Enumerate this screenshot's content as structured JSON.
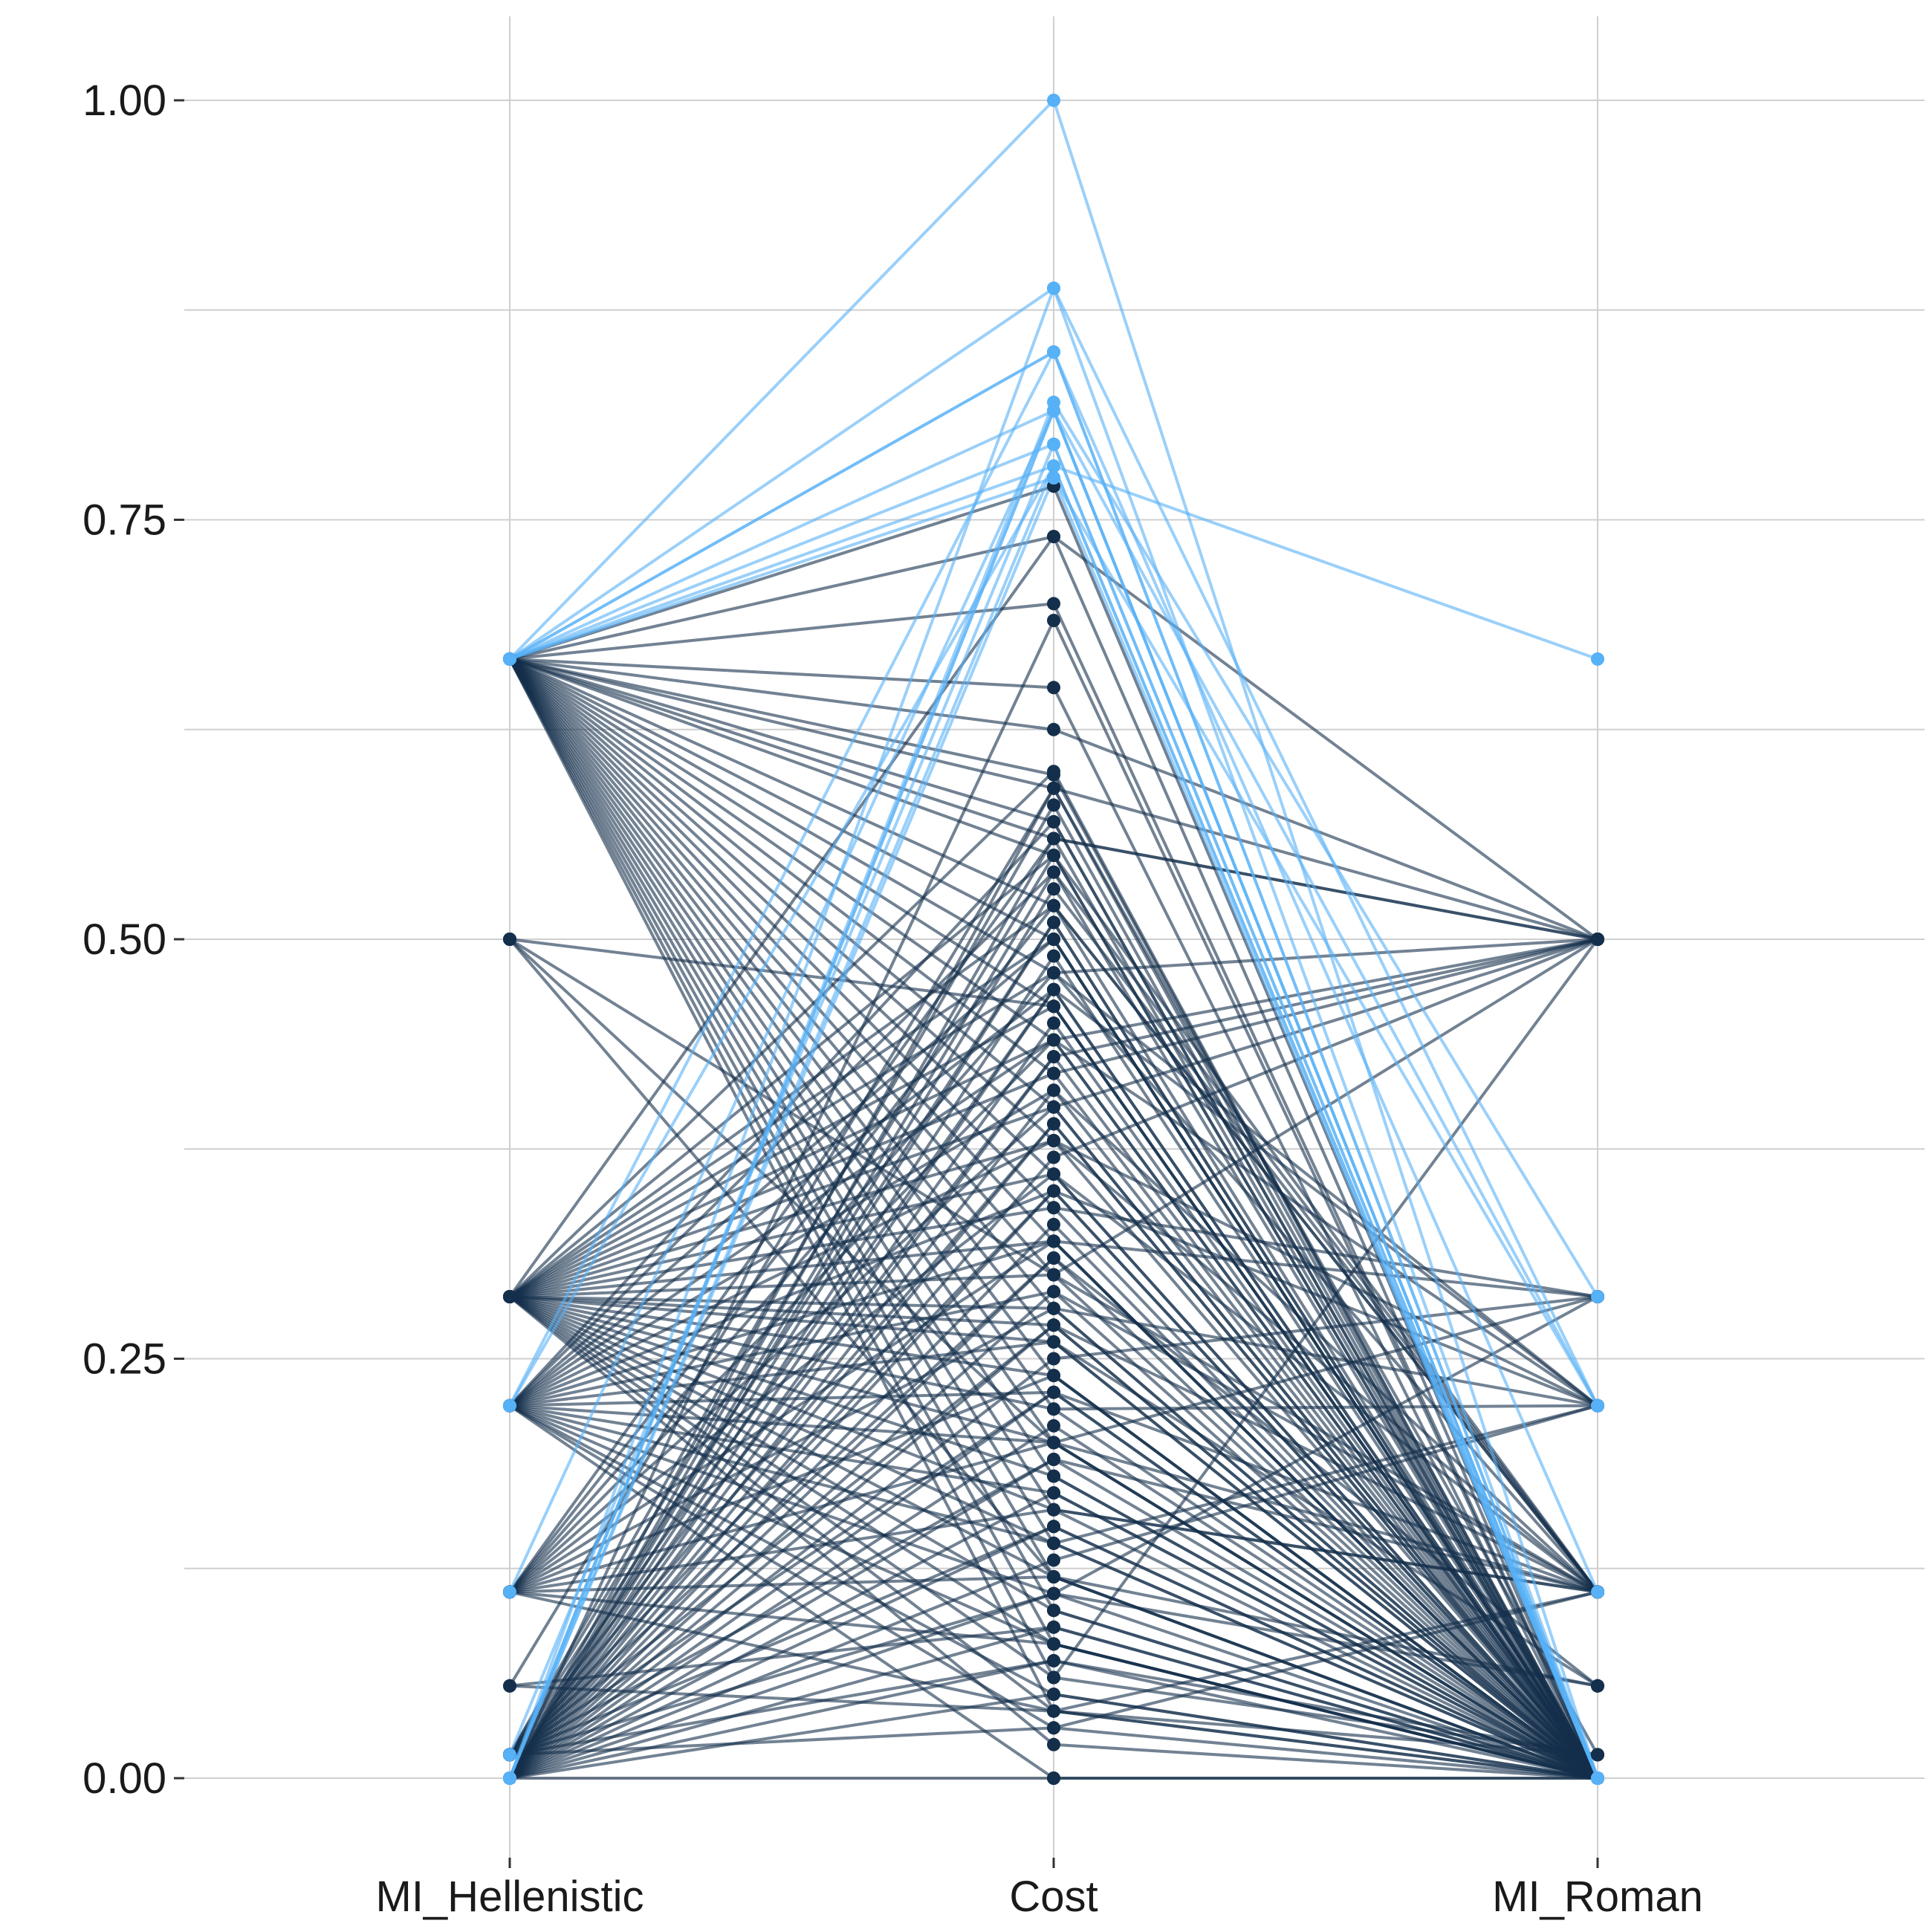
{
  "chart_data": {
    "type": "line",
    "subtype": "parallel-coordinates",
    "title": "",
    "xlabel": "",
    "ylabel": "",
    "ylim": [
      -0.05,
      1.05
    ],
    "y_ticks": [
      "0.00",
      "0.25",
      "0.50",
      "0.75",
      "1.00"
    ],
    "y_tick_values": [
      0,
      0.25,
      0.5,
      0.75,
      1.0
    ],
    "x_categories": [
      "MI_Hellenistic",
      "Cost",
      "MI_Roman"
    ],
    "grid": true,
    "legend": "none",
    "colors": {
      "dark": "#142f4b",
      "light": "#56b1f7",
      "grid": "#cfcfcf",
      "tick": "#333333"
    },
    "groups": [
      {
        "color": "#56b1f7",
        "lines": [
          [
            0.667,
            1.0,
            0.0
          ],
          [
            0.667,
            0.888,
            0.222
          ],
          [
            0.667,
            0.85,
            0.0
          ],
          [
            0.667,
            0.85,
            0.111
          ],
          [
            0.667,
            0.815,
            0.0
          ],
          [
            0.667,
            0.795,
            0.0
          ],
          [
            0.667,
            0.782,
            0.667
          ],
          [
            0.667,
            0.775,
            0.0
          ],
          [
            0.0,
            0.82,
            0.287
          ],
          [
            0.0,
            0.815,
            0.222
          ],
          [
            0.0,
            0.782,
            0.0
          ],
          [
            0.222,
            0.85,
            0.0
          ],
          [
            0.222,
            0.782,
            0.0
          ],
          [
            0.111,
            0.815,
            0.0
          ],
          [
            0.0,
            0.888,
            0.0
          ],
          [
            0.0,
            0.815,
            0.0
          ],
          [
            0.014,
            0.795,
            0.0
          ],
          [
            0.0,
            0.775,
            0.222
          ]
        ]
      },
      {
        "color": "#142f4b",
        "lines": [
          [
            0.667,
            0.77,
            0.0
          ],
          [
            0.667,
            0.74,
            0.0
          ],
          [
            0.667,
            0.7,
            0.0
          ],
          [
            0.667,
            0.65,
            0.0
          ],
          [
            0.667,
            0.625,
            0.5
          ],
          [
            0.667,
            0.598,
            0.0
          ],
          [
            0.667,
            0.59,
            0.014
          ],
          [
            0.667,
            0.57,
            0.0
          ],
          [
            0.667,
            0.56,
            0.5
          ],
          [
            0.667,
            0.55,
            0.0
          ],
          [
            0.667,
            0.52,
            0.111
          ],
          [
            0.667,
            0.5,
            0.0
          ],
          [
            0.667,
            0.48,
            0.222
          ],
          [
            0.667,
            0.46,
            0.0
          ],
          [
            0.667,
            0.44,
            0.0
          ],
          [
            0.667,
            0.42,
            0.5
          ],
          [
            0.667,
            0.4,
            0.0
          ],
          [
            0.667,
            0.38,
            0.0
          ],
          [
            0.667,
            0.36,
            0.111
          ],
          [
            0.667,
            0.34,
            0.0
          ],
          [
            0.667,
            0.32,
            0.287
          ],
          [
            0.667,
            0.3,
            0.0
          ],
          [
            0.667,
            0.28,
            0.0
          ],
          [
            0.667,
            0.26,
            0.055
          ],
          [
            0.667,
            0.24,
            0.0
          ],
          [
            0.667,
            0.22,
            0.0
          ],
          [
            0.667,
            0.2,
            0.111
          ],
          [
            0.667,
            0.18,
            0.0
          ],
          [
            0.667,
            0.16,
            0.0
          ],
          [
            0.667,
            0.14,
            0.222
          ],
          [
            0.667,
            0.12,
            0.0
          ],
          [
            0.667,
            0.1,
            0.0
          ],
          [
            0.667,
            0.08,
            0.0
          ],
          [
            0.667,
            0.06,
            0.014
          ],
          [
            0.667,
            0.04,
            0.0
          ],
          [
            0.5,
            0.46,
            0.0
          ],
          [
            0.5,
            0.3,
            0.111
          ],
          [
            0.5,
            0.2,
            0.0
          ],
          [
            0.5,
            0.12,
            0.0
          ],
          [
            0.055,
            0.09,
            0.0
          ],
          [
            0.055,
            0.59,
            0.5
          ],
          [
            0.055,
            0.04,
            0.111
          ],
          [
            0.287,
            0.74,
            0.5
          ],
          [
            0.287,
            0.6,
            0.0
          ],
          [
            0.287,
            0.55,
            0.0
          ],
          [
            0.287,
            0.52,
            0.111
          ],
          [
            0.287,
            0.5,
            0.0
          ],
          [
            0.287,
            0.48,
            0.5
          ],
          [
            0.287,
            0.46,
            0.0
          ],
          [
            0.287,
            0.44,
            0.222
          ],
          [
            0.287,
            0.42,
            0.0
          ],
          [
            0.287,
            0.4,
            0.0
          ],
          [
            0.287,
            0.38,
            0.111
          ],
          [
            0.287,
            0.36,
            0.0
          ],
          [
            0.287,
            0.34,
            0.287
          ],
          [
            0.287,
            0.32,
            0.0
          ],
          [
            0.287,
            0.3,
            0.5
          ],
          [
            0.287,
            0.28,
            0.0
          ],
          [
            0.287,
            0.27,
            0.111
          ],
          [
            0.287,
            0.26,
            0.0
          ],
          [
            0.287,
            0.24,
            0.0
          ],
          [
            0.287,
            0.22,
            0.222
          ],
          [
            0.287,
            0.2,
            0.0
          ],
          [
            0.287,
            0.18,
            0.0
          ],
          [
            0.287,
            0.16,
            0.111
          ],
          [
            0.287,
            0.14,
            0.0
          ],
          [
            0.287,
            0.12,
            0.055
          ],
          [
            0.287,
            0.1,
            0.0
          ],
          [
            0.287,
            0.08,
            0.0
          ],
          [
            0.287,
            0.06,
            0.5
          ],
          [
            0.287,
            0.04,
            0.0
          ],
          [
            0.287,
            0.02,
            0.0
          ],
          [
            0.222,
            0.57,
            0.0
          ],
          [
            0.222,
            0.54,
            0.111
          ],
          [
            0.222,
            0.5,
            0.0
          ],
          [
            0.222,
            0.47,
            0.0
          ],
          [
            0.222,
            0.44,
            0.5
          ],
          [
            0.222,
            0.41,
            0.0
          ],
          [
            0.222,
            0.38,
            0.222
          ],
          [
            0.222,
            0.35,
            0.0
          ],
          [
            0.222,
            0.32,
            0.0
          ],
          [
            0.222,
            0.29,
            0.111
          ],
          [
            0.222,
            0.26,
            0.0
          ],
          [
            0.222,
            0.23,
            0.0
          ],
          [
            0.222,
            0.2,
            0.287
          ],
          [
            0.222,
            0.17,
            0.0
          ],
          [
            0.222,
            0.14,
            0.0
          ],
          [
            0.222,
            0.11,
            0.055
          ],
          [
            0.222,
            0.08,
            0.0
          ],
          [
            0.222,
            0.05,
            0.0
          ],
          [
            0.222,
            0.03,
            0.111
          ],
          [
            0.222,
            0.0,
            0.0
          ],
          [
            0.111,
            0.56,
            0.0
          ],
          [
            0.111,
            0.52,
            0.0
          ],
          [
            0.111,
            0.48,
            0.111
          ],
          [
            0.111,
            0.44,
            0.0
          ],
          [
            0.111,
            0.4,
            0.5
          ],
          [
            0.111,
            0.36,
            0.0
          ],
          [
            0.111,
            0.32,
            0.0
          ],
          [
            0.111,
            0.28,
            0.222
          ],
          [
            0.111,
            0.24,
            0.0
          ],
          [
            0.111,
            0.2,
            0.0
          ],
          [
            0.111,
            0.16,
            0.111
          ],
          [
            0.111,
            0.12,
            0.0
          ],
          [
            0.111,
            0.08,
            0.0
          ],
          [
            0.111,
            0.04,
            0.014
          ],
          [
            0.014,
            0.58,
            0.0
          ],
          [
            0.014,
            0.55,
            0.111
          ],
          [
            0.014,
            0.51,
            0.0
          ],
          [
            0.014,
            0.47,
            0.0
          ],
          [
            0.014,
            0.43,
            0.5
          ],
          [
            0.014,
            0.39,
            0.0
          ],
          [
            0.014,
            0.35,
            0.222
          ],
          [
            0.014,
            0.31,
            0.0
          ],
          [
            0.014,
            0.27,
            0.0
          ],
          [
            0.014,
            0.23,
            0.111
          ],
          [
            0.014,
            0.19,
            0.0
          ],
          [
            0.014,
            0.15,
            0.0
          ],
          [
            0.014,
            0.11,
            0.287
          ],
          [
            0.014,
            0.07,
            0.0
          ],
          [
            0.014,
            0.03,
            0.0
          ],
          [
            0.0,
            0.69,
            0.0
          ],
          [
            0.0,
            0.59,
            0.0
          ],
          [
            0.0,
            0.56,
            0.5
          ],
          [
            0.0,
            0.54,
            0.0
          ],
          [
            0.0,
            0.53,
            0.111
          ],
          [
            0.0,
            0.51,
            0.0
          ],
          [
            0.0,
            0.49,
            0.0
          ],
          [
            0.0,
            0.47,
            0.222
          ],
          [
            0.0,
            0.45,
            0.0
          ],
          [
            0.0,
            0.43,
            0.0
          ],
          [
            0.0,
            0.41,
            0.111
          ],
          [
            0.0,
            0.39,
            0.0
          ],
          [
            0.0,
            0.37,
            0.5
          ],
          [
            0.0,
            0.35,
            0.0
          ],
          [
            0.0,
            0.33,
            0.0
          ],
          [
            0.0,
            0.31,
            0.055
          ],
          [
            0.0,
            0.29,
            0.0
          ],
          [
            0.0,
            0.27,
            0.0
          ],
          [
            0.0,
            0.25,
            0.287
          ],
          [
            0.0,
            0.23,
            0.0
          ],
          [
            0.0,
            0.21,
            0.0
          ],
          [
            0.0,
            0.19,
            0.111
          ],
          [
            0.0,
            0.17,
            0.0
          ],
          [
            0.0,
            0.15,
            0.0
          ],
          [
            0.0,
            0.13,
            0.222
          ],
          [
            0.0,
            0.11,
            0.0
          ],
          [
            0.0,
            0.09,
            0.0
          ],
          [
            0.0,
            0.07,
            0.014
          ],
          [
            0.0,
            0.05,
            0.0
          ],
          [
            0.0,
            0.0,
            0.0
          ]
        ]
      }
    ]
  }
}
